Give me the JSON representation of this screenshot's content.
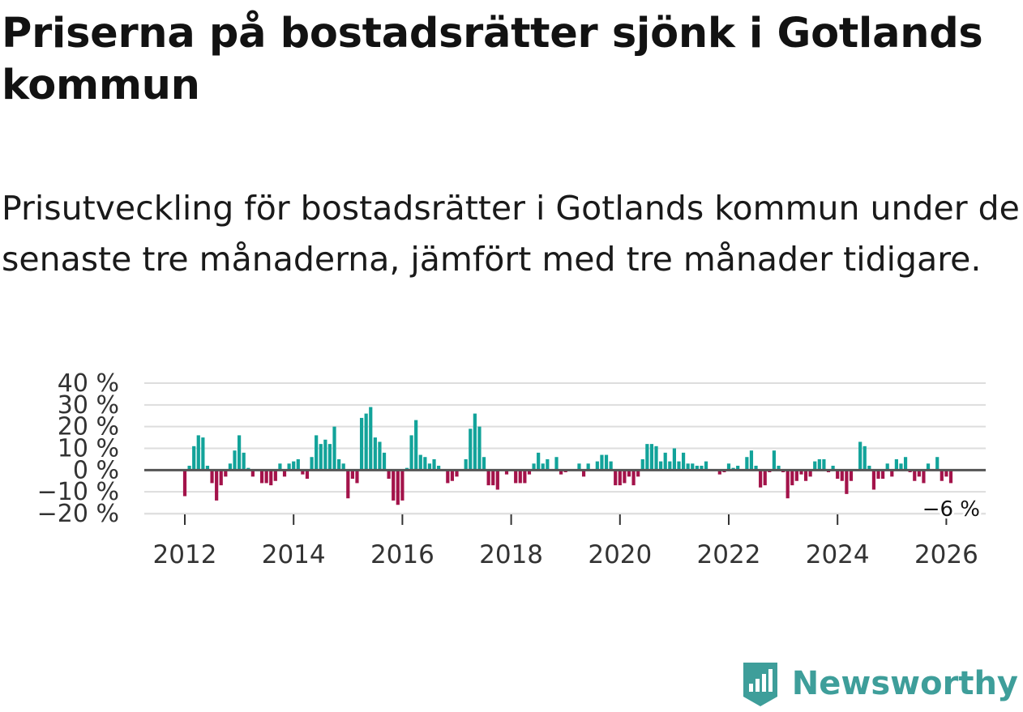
{
  "title": "Priserna på bostadsrätter sjönk i Gotlands kommun",
  "subtitle": "Prisutveckling för bostadsrätter i Gotlands kommun under de senaste tre månaderna, jämfört med tre månader tidigare.",
  "brand": {
    "name": "Newsworthy",
    "icon": "newsworthy-logo-icon"
  },
  "colors": {
    "positive": "#12a39a",
    "negative": "#a3134a",
    "zero_line": "#555555",
    "grid": "#dddddd",
    "brand": "#3e9e9a"
  },
  "chart_data": {
    "type": "bar",
    "title": "",
    "xlabel": "",
    "ylabel": "",
    "ylim": [
      -20,
      40
    ],
    "y_ticks": [
      -20,
      -10,
      0,
      10,
      20,
      30,
      40
    ],
    "y_tick_labels": [
      "−20 %",
      "−10 %",
      "0 %",
      "10 %",
      "20 %",
      "30 %",
      "40 %"
    ],
    "x_ticks": [
      2012,
      2014,
      2016,
      2018,
      2020,
      2022,
      2024,
      2026
    ],
    "x_tick_labels": [
      "2012",
      "2014",
      "2016",
      "2018",
      "2020",
      "2022",
      "2024",
      "2026"
    ],
    "x_start": 2012.0,
    "x_step": 0.0833,
    "values": [
      -12,
      2,
      11,
      16,
      15,
      2,
      -6,
      -14,
      -7,
      -3,
      3,
      9,
      16,
      8,
      1,
      -3,
      0,
      -6,
      -6,
      -7,
      -5,
      3,
      -3,
      3,
      4,
      5,
      -2,
      -4,
      6,
      16,
      12,
      14,
      12,
      20,
      5,
      3,
      -13,
      -4,
      -6,
      24,
      26,
      29,
      15,
      13,
      8,
      -4,
      -14,
      -16,
      -14,
      1,
      16,
      23,
      7,
      6,
      3,
      5,
      2,
      0,
      -6,
      -5,
      -3,
      0,
      5,
      19,
      26,
      20,
      6,
      -7,
      -7,
      -9,
      0,
      -2,
      0,
      -6,
      -6,
      -6,
      -2,
      3,
      8,
      3,
      5,
      0,
      6,
      -2,
      -1,
      0,
      0,
      3,
      -3,
      3,
      0,
      4,
      7,
      7,
      4,
      -7,
      -7,
      -6,
      -3,
      -7,
      -3,
      5,
      12,
      12,
      11,
      4,
      8,
      4,
      10,
      4,
      8,
      3,
      3,
      2,
      2,
      4,
      0,
      0,
      -2,
      -1,
      3,
      1,
      2,
      0,
      6,
      9,
      2,
      -8,
      -7,
      -1,
      9,
      2,
      -1,
      -13,
      -7,
      -5,
      -2,
      -5,
      -3,
      4,
      5,
      5,
      -1,
      2,
      -4,
      -5,
      -11,
      -5,
      0,
      13,
      11,
      2,
      -9,
      -4,
      -4,
      3,
      -3,
      5,
      3,
      6,
      -1,
      -5,
      -3,
      -6,
      3,
      0,
      6,
      -5,
      -3,
      -6
    ],
    "last_value_label": "−6 %"
  }
}
